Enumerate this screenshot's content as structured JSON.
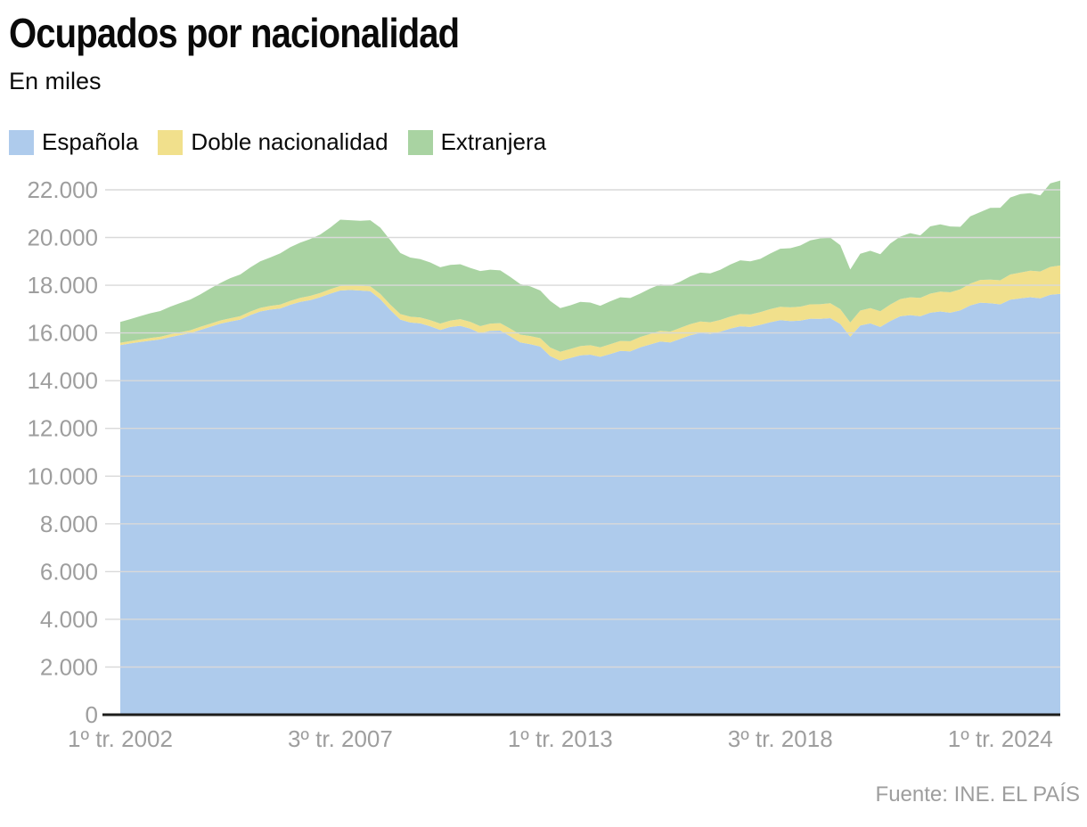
{
  "header": {
    "title": "Ocupados por nacionalidad",
    "subtitle": "En miles"
  },
  "footer": {
    "source": "Fuente: INE. EL PAÍS"
  },
  "colors": {
    "background": "#ffffff",
    "grid": "#d9d9d9",
    "axis_line": "#1d1d1b",
    "axis_text": "#9e9e9e",
    "title_text": "#0a0a0a"
  },
  "chart_data": {
    "type": "area",
    "stacked": true,
    "title": "Ocupados por nacionalidad",
    "subtitle": "En miles",
    "unit": "miles de personas",
    "xlabel": "",
    "ylabel": "",
    "ylim": [
      0,
      22000
    ],
    "grid": true,
    "legend_position": "top",
    "x": [
      "2002-T1",
      "2002-T2",
      "2002-T3",
      "2002-T4",
      "2003-T1",
      "2003-T2",
      "2003-T3",
      "2003-T4",
      "2004-T1",
      "2004-T2",
      "2004-T3",
      "2004-T4",
      "2005-T1",
      "2005-T2",
      "2005-T3",
      "2005-T4",
      "2006-T1",
      "2006-T2",
      "2006-T3",
      "2006-T4",
      "2007-T1",
      "2007-T2",
      "2007-T3",
      "2007-T4",
      "2008-T1",
      "2008-T2",
      "2008-T3",
      "2008-T4",
      "2009-T1",
      "2009-T2",
      "2009-T3",
      "2009-T4",
      "2010-T1",
      "2010-T2",
      "2010-T3",
      "2010-T4",
      "2011-T1",
      "2011-T2",
      "2011-T3",
      "2011-T4",
      "2012-T1",
      "2012-T2",
      "2012-T3",
      "2012-T4",
      "2013-T1",
      "2013-T2",
      "2013-T3",
      "2013-T4",
      "2014-T1",
      "2014-T2",
      "2014-T3",
      "2014-T4",
      "2015-T1",
      "2015-T2",
      "2015-T3",
      "2015-T4",
      "2016-T1",
      "2016-T2",
      "2016-T3",
      "2016-T4",
      "2017-T1",
      "2017-T2",
      "2017-T3",
      "2017-T4",
      "2018-T1",
      "2018-T2",
      "2018-T3",
      "2018-T4",
      "2019-T1",
      "2019-T2",
      "2019-T3",
      "2019-T4",
      "2020-T1",
      "2020-T2",
      "2020-T3",
      "2020-T4",
      "2021-T1",
      "2021-T2",
      "2021-T3",
      "2021-T4",
      "2022-T1",
      "2022-T2",
      "2022-T3",
      "2022-T4",
      "2023-T1",
      "2023-T2",
      "2023-T3",
      "2023-T4",
      "2024-T1",
      "2024-T2",
      "2024-T3",
      "2024-T4",
      "2025-T1",
      "2025-T2",
      "2025-T3"
    ],
    "xticks": [
      {
        "i": 0,
        "label": "1º tr. 2002"
      },
      {
        "i": 22,
        "label": "3º tr. 2007"
      },
      {
        "i": 44,
        "label": "1º tr. 2013"
      },
      {
        "i": 66,
        "label": "3º tr. 2018"
      },
      {
        "i": 88,
        "label": "1º tr. 2024"
      }
    ],
    "yticks": [
      {
        "v": 0,
        "label": "0"
      },
      {
        "v": 2000,
        "label": "2.000"
      },
      {
        "v": 4000,
        "label": "4.000"
      },
      {
        "v": 6000,
        "label": "6.000"
      },
      {
        "v": 8000,
        "label": "8.000"
      },
      {
        "v": 10000,
        "label": "10.000"
      },
      {
        "v": 12000,
        "label": "12.000"
      },
      {
        "v": 14000,
        "label": "14.000"
      },
      {
        "v": 16000,
        "label": "16.000"
      },
      {
        "v": 18000,
        "label": "18.000"
      },
      {
        "v": 20000,
        "label": "20.000"
      },
      {
        "v": 22000,
        "label": "22.000"
      }
    ],
    "series": [
      {
        "id": "espanola",
        "name": "Española",
        "color": "#aecbec",
        "values": [
          15490,
          15560,
          15620,
          15680,
          15730,
          15830,
          15910,
          15990,
          16130,
          16260,
          16390,
          16480,
          16560,
          16750,
          16900,
          16980,
          17030,
          17180,
          17300,
          17380,
          17500,
          17650,
          17780,
          17800,
          17780,
          17750,
          17420,
          16970,
          16560,
          16440,
          16400,
          16280,
          16130,
          16250,
          16300,
          16180,
          15990,
          16090,
          16100,
          15860,
          15600,
          15530,
          15430,
          15030,
          14840,
          14950,
          15060,
          15090,
          15000,
          15120,
          15250,
          15230,
          15400,
          15520,
          15640,
          15600,
          15750,
          15900,
          16000,
          15960,
          16050,
          16180,
          16280,
          16250,
          16340,
          16450,
          16540,
          16500,
          16520,
          16600,
          16590,
          16620,
          16380,
          15840,
          16310,
          16400,
          16250,
          16500,
          16700,
          16750,
          16700,
          16850,
          16900,
          16850,
          16950,
          17150,
          17270,
          17250,
          17200,
          17400,
          17450,
          17500,
          17450,
          17600,
          17640
        ]
      },
      {
        "id": "doble-nacionalidad",
        "name": "Doble nacionalidad",
        "color": "#f1e08c",
        "values": [
          100,
          102,
          105,
          108,
          112,
          115,
          118,
          122,
          126,
          130,
          134,
          138,
          142,
          147,
          152,
          156,
          160,
          165,
          170,
          175,
          180,
          185,
          190,
          195,
          200,
          208,
          216,
          224,
          232,
          240,
          248,
          256,
          264,
          272,
          280,
          288,
          296,
          304,
          312,
          320,
          330,
          340,
          350,
          360,
          370,
          380,
          390,
          395,
          400,
          408,
          416,
          424,
          432,
          440,
          448,
          456,
          464,
          472,
          480,
          488,
          496,
          505,
          515,
          525,
          535,
          548,
          560,
          572,
          585,
          600,
          615,
          625,
          620,
          600,
          630,
          645,
          660,
          690,
          720,
          745,
          770,
          800,
          830,
          855,
          880,
          920,
          955,
          985,
          1010,
          1050,
          1080,
          1110,
          1130,
          1170,
          1190
        ]
      },
      {
        "id": "extranjera",
        "name": "Extranjera",
        "color": "#a9d3a2",
        "values": [
          870,
          920,
          980,
          1040,
          1080,
          1160,
          1230,
          1290,
          1360,
          1470,
          1570,
          1680,
          1750,
          1850,
          1950,
          2030,
          2150,
          2250,
          2320,
          2380,
          2450,
          2580,
          2780,
          2730,
          2720,
          2770,
          2780,
          2700,
          2560,
          2480,
          2450,
          2420,
          2360,
          2330,
          2300,
          2260,
          2310,
          2260,
          2210,
          2170,
          2120,
          2080,
          2000,
          1950,
          1830,
          1830,
          1850,
          1790,
          1740,
          1800,
          1830,
          1810,
          1820,
          1900,
          1950,
          1940,
          1940,
          2000,
          2050,
          2050,
          2100,
          2180,
          2250,
          2230,
          2230,
          2330,
          2430,
          2480,
          2560,
          2680,
          2760,
          2750,
          2680,
          2220,
          2380,
          2400,
          2390,
          2560,
          2620,
          2690,
          2620,
          2820,
          2820,
          2760,
          2620,
          2820,
          2840,
          3010,
          3040,
          3230,
          3290,
          3250,
          3190,
          3500,
          3560
        ]
      }
    ]
  }
}
